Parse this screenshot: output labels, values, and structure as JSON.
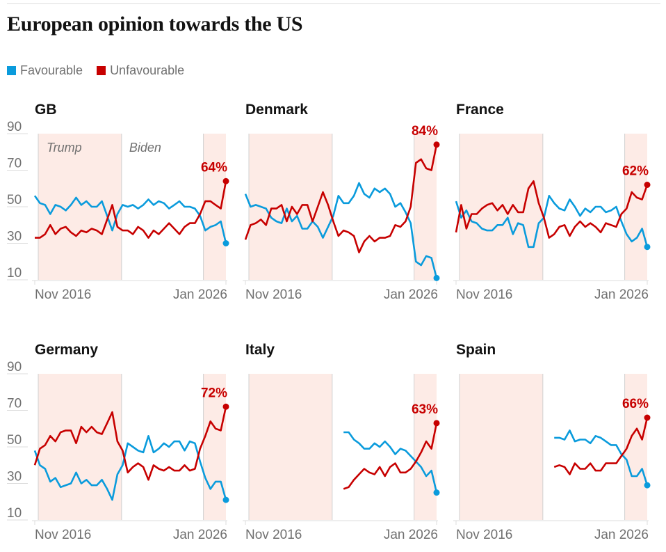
{
  "title": "European opinion towards the US",
  "legend": [
    {
      "label": "Favourable",
      "color": "#0a9bdc"
    },
    {
      "label": "Unfavourable",
      "color": "#c70000"
    }
  ],
  "chart_data": {
    "type": "line",
    "ylim": [
      10,
      90
    ],
    "yticks": [
      "90",
      "70",
      "50",
      "30",
      "10"
    ],
    "ytick_values": [
      90,
      70,
      50,
      30,
      10
    ],
    "xlim": [
      2016.66,
      2026.0
    ],
    "xtick_labels": [
      "Nov 2016",
      "Jan 2026"
    ],
    "xtick_values": [
      2016.83,
      2026.0
    ],
    "periods": [
      {
        "name": "Trump",
        "start": 2016.83,
        "end": 2020.9,
        "shaded": true
      },
      {
        "name": "Biden",
        "start": 2020.9,
        "end": 2024.9,
        "shaded": false
      },
      {
        "name": "Trump",
        "start": 2024.9,
        "end": 2026.0,
        "shaded": true
      }
    ],
    "period_labels": [
      "Trump",
      "Biden"
    ],
    "series_names": [
      "Favourable",
      "Unfavourable"
    ],
    "panels": [
      {
        "country": "GB",
        "last_label": "64%",
        "favourable": [
          56,
          52,
          51,
          46,
          51,
          50,
          48,
          51,
          55,
          51,
          53,
          50,
          50,
          53,
          45,
          37,
          46,
          51,
          50,
          51,
          49,
          51,
          54,
          51,
          53,
          52,
          49,
          51,
          53,
          50,
          50,
          49,
          45,
          37,
          39,
          40,
          42,
          30
        ],
        "unfavourable": [
          33,
          33,
          35,
          40,
          35,
          38,
          39,
          36,
          34,
          37,
          36,
          38,
          37,
          35,
          43,
          51,
          39,
          37,
          37,
          35,
          39,
          37,
          33,
          37,
          35,
          38,
          41,
          38,
          35,
          39,
          41,
          41,
          46,
          53,
          53,
          51,
          49,
          64
        ]
      },
      {
        "country": "Denmark",
        "last_label": "84%",
        "favourable": [
          57,
          50,
          51,
          50,
          49,
          44,
          42,
          41,
          49,
          42,
          45,
          38,
          38,
          42,
          39,
          33,
          39,
          45,
          56,
          52,
          52,
          56,
          63,
          57,
          55,
          60,
          58,
          60,
          57,
          50,
          52,
          47,
          41,
          20,
          18,
          23,
          22,
          11
        ],
        "unfavourable": [
          32,
          40,
          41,
          43,
          40,
          49,
          49,
          51,
          42,
          50,
          46,
          51,
          51,
          42,
          50,
          58,
          51,
          42,
          34,
          37,
          36,
          34,
          25,
          31,
          34,
          31,
          33,
          33,
          34,
          40,
          39,
          42,
          50,
          74,
          76,
          71,
          70,
          84
        ]
      },
      {
        "country": "France",
        "last_label": "62%",
        "favourable": [
          53,
          44,
          48,
          42,
          41,
          38,
          37,
          37,
          40,
          40,
          44,
          35,
          41,
          40,
          28,
          28,
          41,
          44,
          56,
          52,
          49,
          48,
          54,
          50,
          45,
          49,
          47,
          50,
          50,
          47,
          48,
          50,
          42,
          35,
          31,
          33,
          38,
          28
        ],
        "unfavourable": [
          36,
          51,
          38,
          46,
          46,
          49,
          51,
          52,
          48,
          51,
          46,
          51,
          47,
          47,
          60,
          64,
          52,
          44,
          33,
          35,
          39,
          40,
          34,
          39,
          42,
          39,
          41,
          39,
          36,
          41,
          40,
          39,
          46,
          49,
          58,
          55,
          54,
          62
        ]
      },
      {
        "country": "Germany",
        "last_label": "72%",
        "favourable": [
          48,
          40,
          38,
          31,
          33,
          28,
          29,
          30,
          36,
          30,
          32,
          29,
          29,
          32,
          27,
          21,
          35,
          40,
          52,
          50,
          48,
          47,
          56,
          47,
          49,
          52,
          50,
          53,
          53,
          48,
          53,
          52,
          42,
          33,
          27,
          31,
          31,
          21
        ],
        "unfavourable": [
          40,
          49,
          51,
          56,
          53,
          58,
          59,
          59,
          52,
          61,
          58,
          61,
          58,
          57,
          63,
          69,
          53,
          48,
          36,
          39,
          41,
          39,
          32,
          40,
          38,
          37,
          39,
          37,
          37,
          40,
          37,
          38,
          49,
          56,
          64,
          60,
          59,
          72
        ]
      },
      {
        "country": "Italy",
        "last_label": "63%",
        "favourable": [
          null,
          null,
          null,
          null,
          null,
          null,
          null,
          null,
          null,
          null,
          null,
          null,
          null,
          null,
          null,
          null,
          null,
          null,
          null,
          58,
          58,
          54,
          52,
          49,
          49,
          52,
          50,
          53,
          50,
          46,
          49,
          48,
          45,
          42,
          39,
          34,
          37,
          25
        ],
        "unfavourable": [
          null,
          null,
          null,
          null,
          null,
          null,
          null,
          null,
          null,
          null,
          null,
          null,
          null,
          null,
          null,
          null,
          null,
          null,
          null,
          27,
          28,
          32,
          35,
          38,
          36,
          35,
          39,
          34,
          39,
          41,
          36,
          36,
          38,
          42,
          47,
          53,
          49,
          63
        ]
      },
      {
        "country": "Spain",
        "last_label": "66%",
        "favourable": [
          null,
          null,
          null,
          null,
          null,
          null,
          null,
          null,
          null,
          null,
          null,
          null,
          null,
          null,
          null,
          null,
          null,
          null,
          null,
          55,
          55,
          54,
          59,
          53,
          54,
          54,
          52,
          56,
          55,
          53,
          51,
          51,
          46,
          43,
          34,
          34,
          38,
          29
        ],
        "unfavourable": [
          null,
          null,
          null,
          null,
          null,
          null,
          null,
          null,
          null,
          null,
          null,
          null,
          null,
          null,
          null,
          null,
          null,
          null,
          null,
          39,
          40,
          39,
          35,
          41,
          38,
          38,
          41,
          37,
          37,
          41,
          41,
          41,
          45,
          49,
          56,
          60,
          54,
          66
        ]
      }
    ]
  }
}
